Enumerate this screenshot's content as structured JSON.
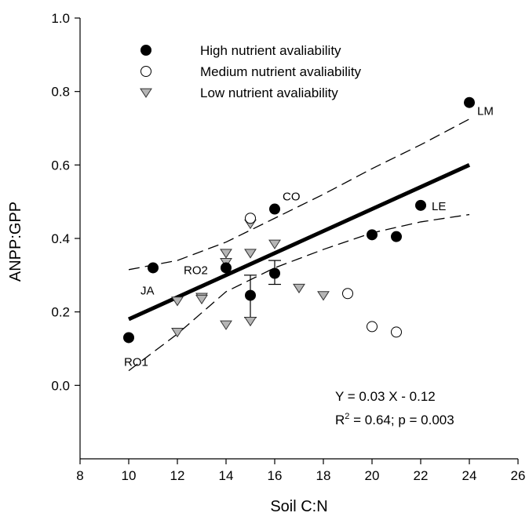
{
  "chart_data": {
    "type": "scatter",
    "xlabel": "Soil C:N",
    "ylabel": "ANPP:GPP",
    "xlim": [
      8,
      26
    ],
    "ylim": [
      -0.2,
      1.0
    ],
    "xticks": [
      "8",
      "10",
      "12",
      "14",
      "16",
      "18",
      "20",
      "22",
      "24",
      "26"
    ],
    "yticks": [
      "0.0",
      "0.2",
      "0.4",
      "0.6",
      "0.8",
      "1.0"
    ],
    "grid": false,
    "legend_position": "top-left",
    "series": [
      {
        "name": "High nutrient avaliability",
        "marker": "filled-circle",
        "color": "#000000",
        "points": [
          {
            "x": 10,
            "y": 0.13
          },
          {
            "x": 11,
            "y": 0.32
          },
          {
            "x": 14,
            "y": 0.32
          },
          {
            "x": 15,
            "y": 0.245
          },
          {
            "x": 16,
            "y": 0.305
          },
          {
            "x": 16,
            "y": 0.48
          },
          {
            "x": 20,
            "y": 0.41
          },
          {
            "x": 21,
            "y": 0.405
          },
          {
            "x": 22,
            "y": 0.49
          },
          {
            "x": 24,
            "y": 0.77
          }
        ]
      },
      {
        "name": "Medium nutrient avaliability",
        "marker": "open-circle",
        "color": "#000000",
        "points": [
          {
            "x": 15,
            "y": 0.455
          },
          {
            "x": 19,
            "y": 0.25
          },
          {
            "x": 20,
            "y": 0.16
          },
          {
            "x": 21,
            "y": 0.145
          }
        ]
      },
      {
        "name": "Low nutrient avaliability",
        "marker": "down-triangle",
        "color": "#b5b5b5",
        "points": [
          {
            "x": 12,
            "y": 0.23
          },
          {
            "x": 12,
            "y": 0.145
          },
          {
            "x": 13,
            "y": 0.24
          },
          {
            "x": 13,
            "y": 0.235
          },
          {
            "x": 14,
            "y": 0.36
          },
          {
            "x": 14,
            "y": 0.335
          },
          {
            "x": 14,
            "y": 0.165
          },
          {
            "x": 15,
            "y": 0.36
          },
          {
            "x": 15,
            "y": 0.44
          },
          {
            "x": 15,
            "y": 0.175
          },
          {
            "x": 16,
            "y": 0.385
          },
          {
            "x": 17,
            "y": 0.265
          },
          {
            "x": 18,
            "y": 0.245
          }
        ]
      }
    ],
    "error_bars": [
      {
        "x": 15,
        "y": 0.245,
        "low": 0.185,
        "high": 0.3
      },
      {
        "x": 16,
        "y": 0.305,
        "low": 0.275,
        "high": 0.34
      }
    ],
    "regression": {
      "slope": 0.03,
      "intercept": -0.12,
      "x_range": [
        10,
        24
      ]
    },
    "confidence_band": {
      "x": [
        10,
        12,
        14,
        16,
        18,
        20,
        22,
        24
      ],
      "upper": [
        0.315,
        0.34,
        0.39,
        0.455,
        0.52,
        0.59,
        0.655,
        0.725
      ],
      "lower": [
        0.04,
        0.14,
        0.255,
        0.32,
        0.37,
        0.415,
        0.445,
        0.465
      ]
    },
    "point_labels": [
      {
        "text": "LM",
        "x": 24,
        "y": 0.77
      },
      {
        "text": "CO",
        "x": 16,
        "y": 0.48
      },
      {
        "text": "LE",
        "x": 22,
        "y": 0.49
      },
      {
        "text": "JA",
        "x": 11,
        "y": 0.32
      },
      {
        "text": "RO2",
        "x": 14,
        "y": 0.32
      },
      {
        "text": "RO1",
        "x": 10,
        "y": 0.13
      }
    ],
    "equation": "Y = 0.03 X - 0.12",
    "r2_prefix": "R",
    "r2_sup": "2",
    "r2_rest": " = 0.64; p = 0.003"
  }
}
